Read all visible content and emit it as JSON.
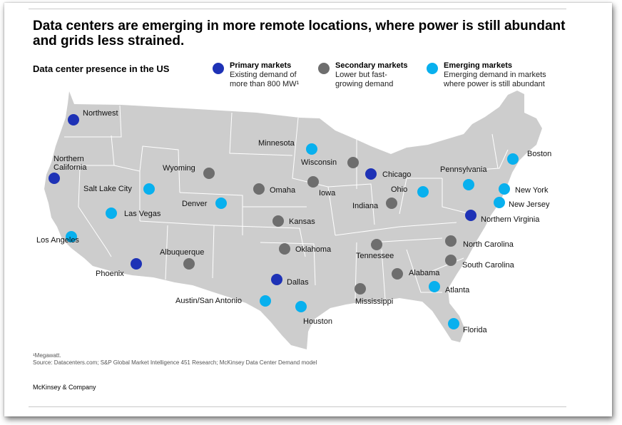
{
  "title": "Data centers are emerging in more remote locations, where power is still abundant and grids less strained.",
  "subtitle": "Data center presence in the US",
  "colors": {
    "primary": "#1e32b6",
    "secondary": "#6e6e6e",
    "emerging": "#08b0ee",
    "land": "#cdcdcd"
  },
  "legend": [
    {
      "key": "primary",
      "heading": "Primary markets",
      "line1": "Existing demand of",
      "line2": "more than 800 MW¹"
    },
    {
      "key": "secondary",
      "heading": "Secondary markets",
      "line1": "Lower but fast-",
      "line2": "growing demand"
    },
    {
      "key": "emerging",
      "heading": "Emerging markets",
      "line1": "Emerging demand in markets",
      "line2": "where power is still abundant"
    }
  ],
  "markets": [
    {
      "name": "Northwest",
      "type": "primary"
    },
    {
      "name": "Northern California",
      "type": "primary"
    },
    {
      "name": "Phoenix",
      "type": "primary"
    },
    {
      "name": "Dallas",
      "type": "primary"
    },
    {
      "name": "Chicago",
      "type": "primary"
    },
    {
      "name": "Northern Virginia",
      "type": "primary"
    },
    {
      "name": "Wyoming",
      "type": "secondary"
    },
    {
      "name": "Omaha",
      "type": "secondary"
    },
    {
      "name": "Wisconsin",
      "type": "secondary"
    },
    {
      "name": "Iowa",
      "type": "secondary"
    },
    {
      "name": "Indiana",
      "type": "secondary"
    },
    {
      "name": "Kansas",
      "type": "secondary"
    },
    {
      "name": "Oklahoma",
      "type": "secondary"
    },
    {
      "name": "Albuquerque",
      "type": "secondary"
    },
    {
      "name": "Tennessee",
      "type": "secondary"
    },
    {
      "name": "North Carolina",
      "type": "secondary"
    },
    {
      "name": "South Carolina",
      "type": "secondary"
    },
    {
      "name": "Alabama",
      "type": "secondary"
    },
    {
      "name": "Mississippi",
      "type": "secondary"
    },
    {
      "name": "Minnesota",
      "type": "emerging"
    },
    {
      "name": "Salt Lake City",
      "type": "emerging"
    },
    {
      "name": "Las Vegas",
      "type": "emerging"
    },
    {
      "name": "Los Angeles",
      "type": "emerging"
    },
    {
      "name": "Denver",
      "type": "emerging"
    },
    {
      "name": "Ohio",
      "type": "emerging"
    },
    {
      "name": "Pennsylvania",
      "type": "emerging"
    },
    {
      "name": "Boston",
      "type": "emerging"
    },
    {
      "name": "New York",
      "type": "emerging"
    },
    {
      "name": "New Jersey",
      "type": "emerging"
    },
    {
      "name": "Atlanta",
      "type": "emerging"
    },
    {
      "name": "Florida",
      "type": "emerging"
    },
    {
      "name": "Austin/San Antonio",
      "type": "emerging"
    },
    {
      "name": "Houston",
      "type": "emerging"
    }
  ],
  "footnote": {
    "line1": "¹Megawatt.",
    "line2": "Source: Datacenters.com; S&P Global Market Intelligence 451 Research; McKinsey Data Center Demand model"
  },
  "brand": "McKinsey & Company"
}
